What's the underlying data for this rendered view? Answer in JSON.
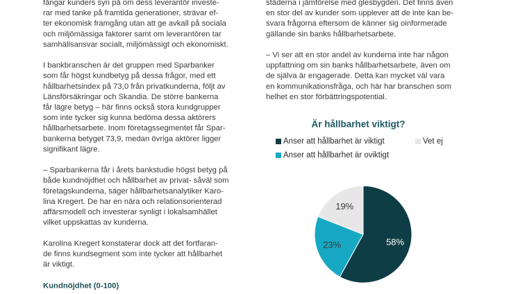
{
  "left_column": {
    "paragraphs": [
      [
        "fångar kunders syn på om dess leverantör investe-",
        "rar med tanke på framtida generationer, strävar ef-",
        "ter ekonomisk framgång utan att ge avkall på sociala",
        "och miljömässiga faktorer samt om leverantören tar",
        "samhällsansvar socialt, miljömässigt och ekonomiskt."
      ],
      [
        "I bankbranschen är det gruppen med Sparbanker",
        "som får högst kundbetyg på dessa frågor, med ett",
        "hållbarhetsindex på 73,0 från privatkunderna, följt av",
        "Länsförsäkringar och Skandia. De större bankerna",
        "får lägre betyg – här finns också stora kundgrupper",
        "som inte tycker sig kunna bedöma dessa aktörers",
        "hållbarhetsarbete. Inom företagssegmentet får Spar-",
        "bankerna betyget 73,9, medan övriga aktörer ligger",
        "signifikant lägre."
      ],
      [
        "– Sparbankerna får i årets bankstudie högst betyg på",
        "både kundnöjdhet och hållbarhet av privat- såväl som",
        "företagskunderna, säger hållbarhetsanalytiker Karo-",
        "lina Kregert. De har en nära och relationsorienterad",
        "affärsmodell och investerar synligt i lokalsamhället",
        "vilket uppskattas av kunderna."
      ],
      [
        "Karolina Kregert konstaterar dock att det fortfaran-",
        "de finns kundsegment som inte tycker att hållbarhet",
        "är viktigt."
      ]
    ],
    "heading": "Kundnöjdhet (0-100)"
  },
  "right_column": {
    "paragraphs": [
      [
        "städerna i jämförelse med glesbygden. Det finns även",
        "en stor del av kunder som upplever att de inte kan be-",
        "svara frågorna eftersom de känner sig oinformerade",
        "gällande sin banks hållbarhetsarbete."
      ],
      [
        "– Vi ser att en stor andel av kunderna inte har någon",
        "uppfattning om sin banks hållbarhetsarbete, även om",
        "de själva är engagerade. Detta kan mycket väl vara",
        "en kommunikationsfråga, och här har branschen som",
        "helhet en stor förbättringspotential."
      ]
    ]
  },
  "chart_data": {
    "type": "pie",
    "title": "Är hållbarhet viktigt?",
    "categories": [
      "Anser att hållbarhet är viktigt",
      "Anser att hållbarhet är oviktigt",
      "Vet ej"
    ],
    "values": [
      58,
      23,
      19
    ],
    "value_labels": [
      "58%",
      "23%",
      "19%"
    ],
    "colors": [
      "#0e3d46",
      "#17a8c3",
      "#e7e7e7"
    ],
    "label_colors": [
      "#ffffff",
      "#3a3a3a",
      "#3a3a3a"
    ]
  }
}
